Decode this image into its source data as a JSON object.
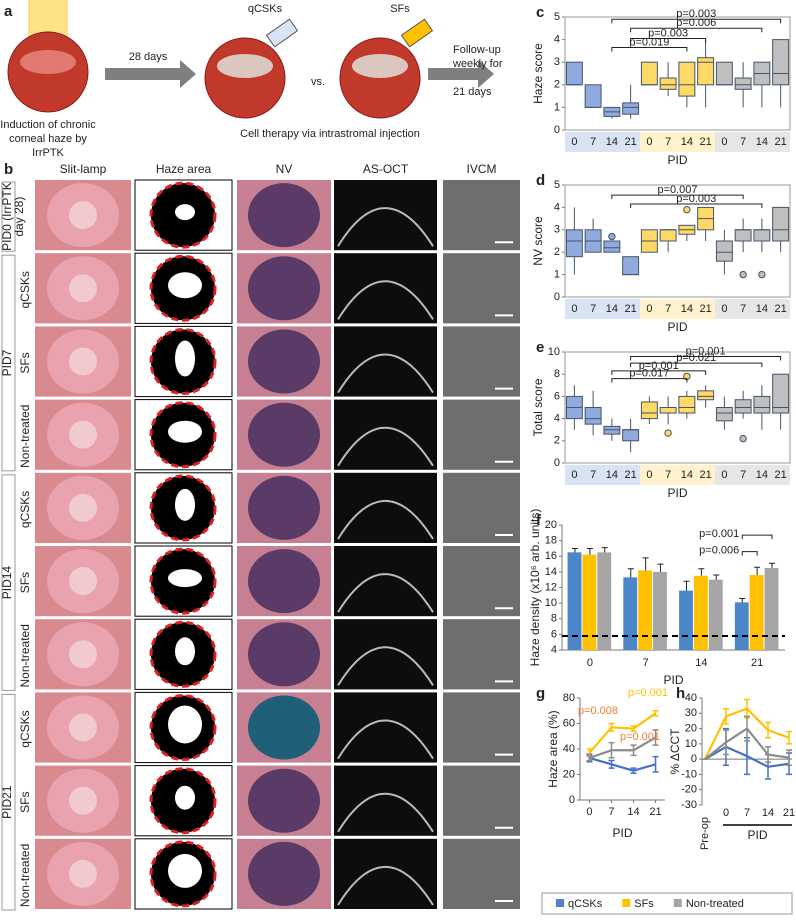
{
  "panel_labels": [
    "a",
    "b",
    "c",
    "d",
    "e",
    "f",
    "g",
    "h"
  ],
  "schematic": {
    "induction": [
      "Induction of chronic",
      "corneal haze by",
      "IrrPTK"
    ],
    "interval": "28 days",
    "treatment_a": "qCSKs",
    "comparison": "vs.",
    "treatment_b": "SFs",
    "followup": [
      "Follow-up",
      "weekly for",
      "21 days"
    ],
    "caption": "Cell therapy via intrastromal injection"
  },
  "images": {
    "columns": [
      "Slit-lamp",
      "Haze area",
      "NV",
      "AS-OCT",
      "IVCM"
    ],
    "groups": [
      {
        "label": [
          "PID0 (IrrPTK",
          "day 28)"
        ],
        "rows": []
      },
      {
        "label": [
          "PID7"
        ],
        "rows": [
          "qCSKs",
          "SFs",
          "Non-treated"
        ]
      },
      {
        "label": [
          "PID14"
        ],
        "rows": [
          "qCSKs",
          "SFs",
          "Non-treated"
        ]
      },
      {
        "label": [
          "PID21"
        ],
        "rows": [
          "qCSKs",
          "SFs",
          "Non-treated"
        ]
      }
    ]
  },
  "chart_data": [
    {
      "type": "box",
      "ylabel": "Haze score",
      "xlabel": "PID",
      "categories": [
        "0",
        "7",
        "14",
        "21"
      ],
      "ylim": [
        0,
        5
      ],
      "yticks": [
        0,
        1,
        2,
        3,
        4,
        5
      ],
      "groups": [
        {
          "name": "qCSKs",
          "color": "#8faadc",
          "band": "#dae3f3",
          "boxes": [
            {
              "min": 2,
              "q1": 2,
              "median": 2,
              "q3": 3,
              "max": 3
            },
            {
              "min": 1,
              "q1": 1,
              "median": 1,
              "q3": 2,
              "max": 2
            },
            {
              "min": 0.5,
              "q1": 0.6,
              "median": 0.8,
              "q3": 1,
              "max": 1
            },
            {
              "min": 0.5,
              "q1": 0.7,
              "median": 1,
              "q3": 1.2,
              "max": 2
            }
          ]
        },
        {
          "name": "SFs",
          "color": "#ffd966",
          "band": "#fff2cc",
          "boxes": [
            {
              "min": 2,
              "q1": 2,
              "median": 2,
              "q3": 3,
              "max": 3
            },
            {
              "min": 1.5,
              "q1": 1.8,
              "median": 2,
              "q3": 2.3,
              "max": 3
            },
            {
              "min": 1,
              "q1": 1.5,
              "median": 2,
              "q3": 3,
              "max": 3
            },
            {
              "min": 1,
              "q1": 2,
              "median": 3,
              "q3": 3.2,
              "max": 4
            }
          ]
        },
        {
          "name": "Non-treated",
          "color": "#bfbfbf",
          "band": "#e7e6e6",
          "boxes": [
            {
              "min": 2,
              "q1": 2,
              "median": 2,
              "q3": 3,
              "max": 3
            },
            {
              "min": 1,
              "q1": 1.8,
              "median": 2,
              "q3": 2.3,
              "max": 3
            },
            {
              "min": 1,
              "q1": 2,
              "median": 2.5,
              "q3": 3,
              "max": 3
            },
            {
              "min": 1,
              "q1": 2,
              "median": 2.5,
              "q3": 4,
              "max": 4
            }
          ]
        }
      ],
      "annotations": [
        "p=0.003",
        "p=0.006",
        "p=0.003",
        "p=0.019"
      ]
    },
    {
      "type": "box",
      "ylabel": "NV score",
      "xlabel": "PID",
      "categories": [
        "0",
        "7",
        "14",
        "21"
      ],
      "ylim": [
        0,
        5
      ],
      "yticks": [
        0,
        1,
        2,
        3,
        4,
        5
      ],
      "groups": [
        {
          "name": "qCSKs",
          "color": "#8faadc",
          "band": "#dae3f3",
          "boxes": [
            {
              "min": 1,
              "q1": 1.8,
              "median": 2.5,
              "q3": 3,
              "max": 4
            },
            {
              "min": 2,
              "q1": 2,
              "median": 2.5,
              "q3": 3,
              "max": 3.5
            },
            {
              "min": 2,
              "q1": 2,
              "median": 2.2,
              "q3": 2.5,
              "max": 2.5,
              "outliers": [
                2.7
              ]
            },
            {
              "min": 1,
              "q1": 1,
              "median": 1,
              "q3": 1.8,
              "max": 1.8
            }
          ]
        },
        {
          "name": "SFs",
          "color": "#ffd966",
          "band": "#fff2cc",
          "boxes": [
            {
              "min": 2,
              "q1": 2,
              "median": 2.5,
              "q3": 3,
              "max": 3
            },
            {
              "min": 2,
              "q1": 2.5,
              "median": 3,
              "q3": 3,
              "max": 3
            },
            {
              "min": 2.5,
              "q1": 2.8,
              "median": 3,
              "q3": 3.2,
              "max": 3.2,
              "outliers": [
                3.9
              ]
            },
            {
              "min": 2.5,
              "q1": 3,
              "median": 3.5,
              "q3": 4,
              "max": 4
            }
          ]
        },
        {
          "name": "Non-treated",
          "color": "#bfbfbf",
          "band": "#e7e6e6",
          "boxes": [
            {
              "min": 1,
              "q1": 1.6,
              "median": 2,
              "q3": 2.5,
              "max": 3
            },
            {
              "min": 2,
              "q1": 2.5,
              "median": 3,
              "q3": 3,
              "max": 3.5,
              "outliers": [
                1
              ]
            },
            {
              "min": 2,
              "q1": 2.5,
              "median": 3,
              "q3": 3,
              "max": 3.5,
              "outliers": [
                1
              ]
            },
            {
              "min": 2,
              "q1": 2.5,
              "median": 3,
              "q3": 4,
              "max": 4
            }
          ]
        }
      ],
      "annotations": [
        "p=0.007",
        "p=0.003"
      ]
    },
    {
      "type": "box",
      "ylabel": "Total score",
      "xlabel": "PID",
      "categories": [
        "0",
        "7",
        "14",
        "21"
      ],
      "ylim": [
        0,
        10
      ],
      "yticks": [
        0,
        2,
        4,
        6,
        8,
        10
      ],
      "groups": [
        {
          "name": "qCSKs",
          "color": "#8faadc",
          "band": "#dae3f3",
          "boxes": [
            {
              "min": 3,
              "q1": 4,
              "median": 5,
              "q3": 6,
              "max": 7
            },
            {
              "min": 2.5,
              "q1": 3.5,
              "median": 4,
              "q3": 5,
              "max": 6.5
            },
            {
              "min": 2,
              "q1": 2.6,
              "median": 3,
              "q3": 3.3,
              "max": 4
            },
            {
              "min": 1,
              "q1": 2,
              "median": 3,
              "q3": 3,
              "max": 4
            }
          ]
        },
        {
          "name": "SFs",
          "color": "#ffd966",
          "band": "#fff2cc",
          "boxes": [
            {
              "min": 3.5,
              "q1": 4,
              "median": 4.5,
              "q3": 5.5,
              "max": 6
            },
            {
              "min": 3.5,
              "q1": 4.5,
              "median": 5,
              "q3": 5,
              "max": 6,
              "outliers": [
                2.7
              ]
            },
            {
              "min": 4,
              "q1": 4.5,
              "median": 5,
              "q3": 6,
              "max": 6.5,
              "outliers": [
                7.8
              ]
            },
            {
              "min": 5,
              "q1": 5.7,
              "median": 6,
              "q3": 6.5,
              "max": 7
            }
          ]
        },
        {
          "name": "Non-treated",
          "color": "#bfbfbf",
          "band": "#e7e6e6",
          "boxes": [
            {
              "min": 3,
              "q1": 3.8,
              "median": 4.5,
              "q3": 5,
              "max": 6
            },
            {
              "min": 4,
              "q1": 4.5,
              "median": 5,
              "q3": 5.7,
              "max": 6.5,
              "outliers": [
                2.2
              ]
            },
            {
              "min": 3,
              "q1": 4.5,
              "median": 5,
              "q3": 6,
              "max": 7
            },
            {
              "min": 3,
              "q1": 4.5,
              "median": 5,
              "q3": 8,
              "max": 8
            }
          ]
        }
      ],
      "annotations": [
        "p=0.001",
        "p=0.021",
        "p=0.001",
        "p=0.017"
      ]
    },
    {
      "type": "bar",
      "ylabel": "Haze density (x10⁶ arb. units)",
      "xlabel": "PID",
      "categories": [
        "0",
        "7",
        "14",
        "21"
      ],
      "ylim": [
        4,
        20
      ],
      "yticks": [
        4,
        6,
        8,
        10,
        12,
        14,
        16,
        18,
        20
      ],
      "reference": 5.8,
      "series": [
        {
          "name": "qCSKs",
          "color": "#4a86c8",
          "values": [
            16.5,
            13.3,
            11.6,
            10.1
          ],
          "errors": [
            0.5,
            1.1,
            1.2,
            0.5
          ]
        },
        {
          "name": "SFs",
          "color": "#ffc000",
          "values": [
            16.2,
            14.2,
            13.5,
            13.6
          ],
          "errors": [
            0.8,
            1.6,
            0.9,
            1
          ]
        },
        {
          "name": "Non-treated",
          "color": "#a5a5a5",
          "values": [
            16.5,
            14,
            13,
            14.5
          ],
          "errors": [
            0.6,
            1,
            0.6,
            0.6
          ]
        }
      ],
      "annotations": [
        "p=0.001",
        "p=0.006"
      ]
    },
    {
      "type": "line",
      "ylabel": "Haze area (%)",
      "xlabel": "PID",
      "x": [
        0,
        7,
        14,
        21
      ],
      "xlim": [
        -3,
        24
      ],
      "xticks": [
        0,
        7,
        14,
        21
      ],
      "ylim": [
        0,
        80
      ],
      "yticks": [
        0,
        20,
        40,
        60,
        80
      ],
      "series": [
        {
          "name": "qCSKs",
          "color": "#4472c4",
          "values": [
            33,
            28,
            23,
            28
          ],
          "errors": [
            3,
            3,
            2,
            6
          ]
        },
        {
          "name": "SFs",
          "color": "#ffc000",
          "values": [
            37,
            57,
            56,
            68
          ],
          "errors": [
            3,
            3,
            2,
            2
          ]
        },
        {
          "name": "Non-treated",
          "color": "#8c8c8c",
          "values": [
            33,
            39,
            39,
            49
          ],
          "errors": [
            2,
            6,
            4,
            6
          ]
        }
      ],
      "annotations": [
        {
          "text": "p=0.008",
          "color": "#ed7d31"
        },
        {
          "text": "p=0.001",
          "color": "#ed7d31"
        },
        {
          "text": "p=0.001",
          "color": "#ffc000"
        }
      ]
    },
    {
      "type": "line",
      "ylabel": "% ΔCCT",
      "xlabel": "PID",
      "categories": [
        "Pre-op",
        "0",
        "7",
        "14",
        "21"
      ],
      "ylim": [
        -30,
        40
      ],
      "yticks": [
        -30,
        -20,
        -10,
        0,
        10,
        20,
        30,
        40
      ],
      "series": [
        {
          "name": "qCSKs",
          "color": "#4472c4",
          "values": [
            0,
            8,
            2,
            -5,
            -3
          ],
          "errors": [
            0,
            12,
            12,
            8,
            7
          ]
        },
        {
          "name": "SFs",
          "color": "#ffc000",
          "values": [
            0,
            28,
            33,
            19,
            14
          ],
          "errors": [
            0,
            5,
            6,
            5,
            4
          ]
        },
        {
          "name": "Non-treated",
          "color": "#8c8c8c",
          "values": [
            0,
            11,
            20,
            3,
            1
          ],
          "errors": [
            0,
            8,
            8,
            5,
            5
          ]
        }
      ]
    }
  ]
}
